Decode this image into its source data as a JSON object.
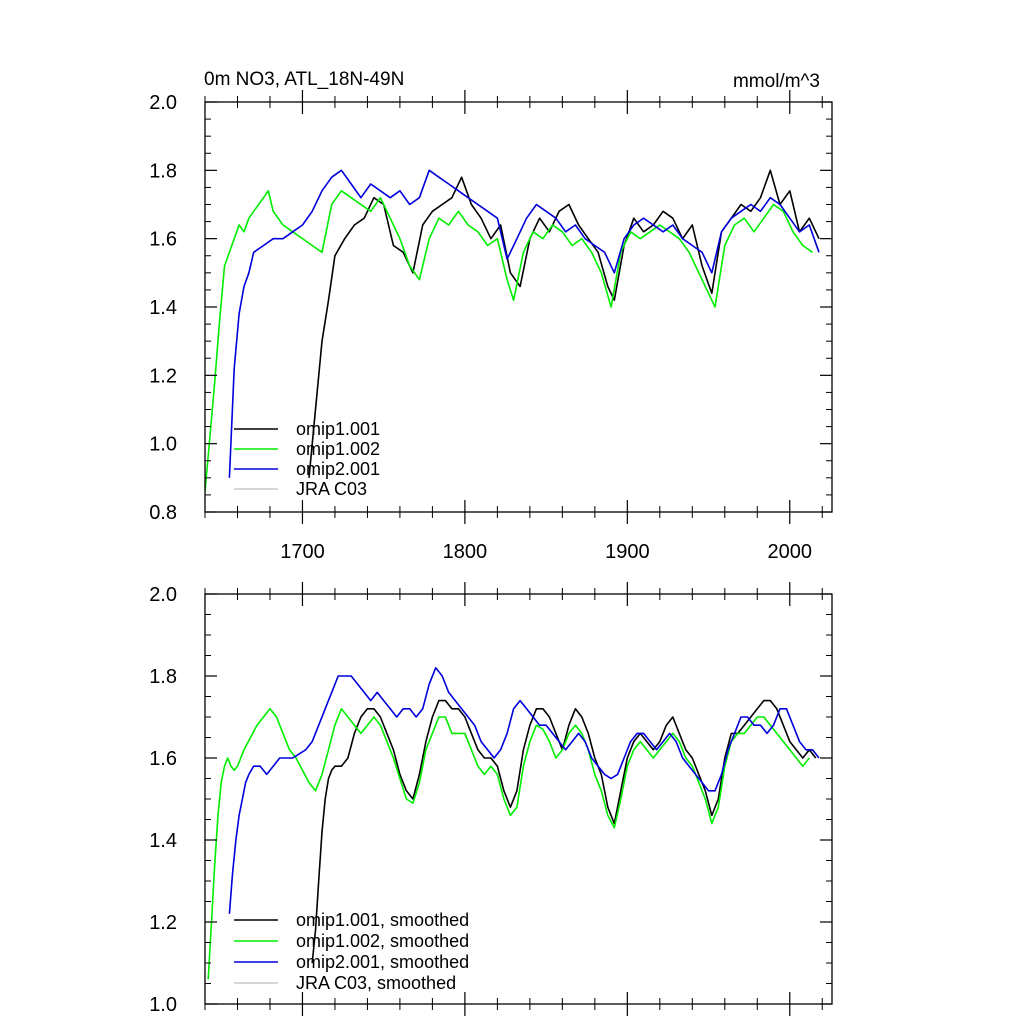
{
  "chart_data": [
    {
      "type": "line",
      "title": "0m NO3, ATL_18N-49N",
      "units": "mmol/m^3",
      "xlim": [
        1640,
        2026
      ],
      "ylim": [
        0.8,
        2.0
      ],
      "xticks": [
        1700,
        1800,
        1900,
        2000
      ],
      "xtick_labels": [
        "1700",
        "1800",
        "1900",
        "2000"
      ],
      "yticks": [
        0.8,
        1.0,
        1.2,
        1.4,
        1.6,
        1.8,
        2.0
      ],
      "ytick_labels": [
        "0.8",
        "1.0",
        "1.2",
        "1.4",
        "1.6",
        "1.8",
        "2.0"
      ],
      "legend_location": "lower-left",
      "series": [
        {
          "name": "omip1.001",
          "color": "#000000",
          "x": [
            1704,
            1708,
            1712,
            1716,
            1720,
            1726,
            1732,
            1738,
            1744,
            1750,
            1756,
            1762,
            1768,
            1774,
            1780,
            1786,
            1792,
            1798,
            1804,
            1810,
            1816,
            1822,
            1828,
            1834,
            1840,
            1846,
            1852,
            1858,
            1864,
            1870,
            1876,
            1882,
            1888,
            1892,
            1898,
            1904,
            1910,
            1916,
            1922,
            1928,
            1934,
            1940,
            1946,
            1952,
            1958,
            1964,
            1970,
            1976,
            1982,
            1988,
            1994,
            2000,
            2006,
            2012,
            2018
          ],
          "y": [
            0.9,
            1.1,
            1.3,
            1.42,
            1.55,
            1.6,
            1.64,
            1.66,
            1.72,
            1.7,
            1.58,
            1.56,
            1.5,
            1.64,
            1.68,
            1.7,
            1.72,
            1.78,
            1.7,
            1.66,
            1.6,
            1.64,
            1.5,
            1.46,
            1.6,
            1.66,
            1.62,
            1.68,
            1.7,
            1.64,
            1.6,
            1.56,
            1.46,
            1.42,
            1.58,
            1.66,
            1.62,
            1.64,
            1.68,
            1.66,
            1.6,
            1.64,
            1.52,
            1.44,
            1.62,
            1.66,
            1.7,
            1.68,
            1.72,
            1.8,
            1.7,
            1.74,
            1.62,
            1.66,
            1.6
          ]
        },
        {
          "name": "omip1.002",
          "color": "#00ee00",
          "x": [
            1640,
            1643,
            1646,
            1649,
            1652,
            1655,
            1658,
            1661,
            1664,
            1667,
            1670,
            1673,
            1676,
            1679,
            1682,
            1688,
            1694,
            1700,
            1706,
            1712,
            1718,
            1724,
            1730,
            1736,
            1742,
            1748,
            1754,
            1760,
            1766,
            1772,
            1778,
            1784,
            1790,
            1796,
            1802,
            1808,
            1814,
            1820,
            1826,
            1830,
            1836,
            1842,
            1848,
            1854,
            1860,
            1866,
            1872,
            1878,
            1884,
            1890,
            1896,
            1902,
            1908,
            1914,
            1920,
            1926,
            1932,
            1938,
            1944,
            1950,
            1954,
            1960,
            1966,
            1972,
            1978,
            1984,
            1990,
            1996,
            2002,
            2008,
            2014
          ],
          "y": [
            0.86,
            1.02,
            1.18,
            1.36,
            1.52,
            1.56,
            1.6,
            1.64,
            1.62,
            1.66,
            1.68,
            1.7,
            1.72,
            1.74,
            1.68,
            1.64,
            1.62,
            1.6,
            1.58,
            1.56,
            1.7,
            1.74,
            1.72,
            1.7,
            1.68,
            1.72,
            1.66,
            1.6,
            1.52,
            1.48,
            1.6,
            1.66,
            1.64,
            1.68,
            1.64,
            1.62,
            1.58,
            1.6,
            1.48,
            1.42,
            1.56,
            1.62,
            1.6,
            1.64,
            1.62,
            1.58,
            1.6,
            1.56,
            1.5,
            1.4,
            1.56,
            1.62,
            1.6,
            1.62,
            1.64,
            1.62,
            1.6,
            1.56,
            1.5,
            1.44,
            1.4,
            1.58,
            1.64,
            1.66,
            1.62,
            1.66,
            1.7,
            1.68,
            1.62,
            1.58,
            1.56
          ]
        },
        {
          "name": "omip2.001",
          "color": "#0000dd",
          "x": [
            1655,
            1658,
            1661,
            1664,
            1667,
            1670,
            1676,
            1682,
            1688,
            1694,
            1700,
            1706,
            1712,
            1718,
            1724,
            1730,
            1736,
            1742,
            1748,
            1754,
            1760,
            1766,
            1772,
            1778,
            1784,
            1790,
            1796,
            1802,
            1808,
            1814,
            1820,
            1826,
            1832,
            1838,
            1844,
            1850,
            1856,
            1862,
            1868,
            1874,
            1880,
            1886,
            1892,
            1898,
            1904,
            1910,
            1916,
            1922,
            1928,
            1934,
            1940,
            1946,
            1952,
            1958,
            1964,
            1970,
            1976,
            1982,
            1988,
            1994,
            2000,
            2006,
            2012,
            2018
          ],
          "y": [
            0.9,
            1.22,
            1.38,
            1.46,
            1.5,
            1.56,
            1.58,
            1.6,
            1.6,
            1.62,
            1.64,
            1.68,
            1.74,
            1.78,
            1.8,
            1.76,
            1.72,
            1.76,
            1.74,
            1.72,
            1.74,
            1.7,
            1.72,
            1.8,
            1.78,
            1.76,
            1.74,
            1.72,
            1.7,
            1.68,
            1.66,
            1.54,
            1.6,
            1.66,
            1.7,
            1.68,
            1.66,
            1.62,
            1.64,
            1.6,
            1.58,
            1.56,
            1.5,
            1.6,
            1.64,
            1.66,
            1.64,
            1.62,
            1.64,
            1.6,
            1.58,
            1.56,
            1.5,
            1.62,
            1.66,
            1.68,
            1.7,
            1.68,
            1.72,
            1.7,
            1.66,
            1.62,
            1.64,
            1.56
          ]
        },
        {
          "name": "JRA C03",
          "color": "#c8c8c8",
          "x": [],
          "y": []
        }
      ]
    },
    {
      "type": "line",
      "title": "",
      "units": "",
      "xlim": [
        1640,
        2026
      ],
      "ylim": [
        1.0,
        2.0
      ],
      "xticks": [
        1700,
        1800,
        1900,
        2000
      ],
      "xtick_labels": [
        "",
        "",
        "",
        ""
      ],
      "yticks": [
        1.0,
        1.2,
        1.4,
        1.6,
        1.8,
        2.0
      ],
      "ytick_labels": [
        "1.0",
        "1.2",
        "1.4",
        "1.6",
        "1.8",
        "2.0"
      ],
      "legend_location": "lower-left",
      "series": [
        {
          "name": "omip1.001, smoothed",
          "color": "#000000",
          "x": [
            1706,
            1708,
            1710,
            1712,
            1714,
            1716,
            1718,
            1720,
            1724,
            1728,
            1732,
            1736,
            1740,
            1744,
            1748,
            1752,
            1756,
            1760,
            1764,
            1768,
            1772,
            1776,
            1780,
            1784,
            1788,
            1792,
            1796,
            1800,
            1804,
            1808,
            1812,
            1816,
            1820,
            1824,
            1828,
            1832,
            1836,
            1840,
            1844,
            1848,
            1852,
            1856,
            1860,
            1864,
            1868,
            1872,
            1876,
            1880,
            1884,
            1888,
            1892,
            1896,
            1900,
            1904,
            1908,
            1912,
            1916,
            1920,
            1924,
            1928,
            1932,
            1936,
            1940,
            1944,
            1948,
            1952,
            1956,
            1960,
            1964,
            1968,
            1972,
            1976,
            1980,
            1984,
            1988,
            1992,
            1996,
            2000,
            2004,
            2008,
            2012,
            2016
          ],
          "y": [
            1.1,
            1.18,
            1.3,
            1.42,
            1.5,
            1.55,
            1.57,
            1.58,
            1.58,
            1.6,
            1.66,
            1.7,
            1.72,
            1.72,
            1.7,
            1.66,
            1.62,
            1.56,
            1.52,
            1.5,
            1.56,
            1.64,
            1.7,
            1.74,
            1.74,
            1.72,
            1.72,
            1.7,
            1.66,
            1.62,
            1.6,
            1.6,
            1.58,
            1.52,
            1.48,
            1.52,
            1.62,
            1.68,
            1.72,
            1.72,
            1.7,
            1.66,
            1.62,
            1.68,
            1.72,
            1.7,
            1.66,
            1.6,
            1.56,
            1.48,
            1.44,
            1.52,
            1.6,
            1.64,
            1.66,
            1.64,
            1.62,
            1.64,
            1.68,
            1.7,
            1.66,
            1.62,
            1.6,
            1.56,
            1.52,
            1.46,
            1.5,
            1.6,
            1.66,
            1.66,
            1.68,
            1.7,
            1.72,
            1.74,
            1.74,
            1.72,
            1.68,
            1.64,
            1.62,
            1.6,
            1.62,
            1.6
          ]
        },
        {
          "name": "omip1.002, smoothed",
          "color": "#00ee00",
          "x": [
            1642,
            1644,
            1646,
            1648,
            1650,
            1652,
            1654,
            1656,
            1658,
            1660,
            1664,
            1668,
            1672,
            1676,
            1680,
            1684,
            1688,
            1692,
            1696,
            1700,
            1704,
            1708,
            1712,
            1716,
            1720,
            1724,
            1728,
            1732,
            1736,
            1740,
            1744,
            1748,
            1752,
            1756,
            1760,
            1764,
            1768,
            1772,
            1776,
            1780,
            1784,
            1788,
            1792,
            1796,
            1800,
            1804,
            1808,
            1812,
            1816,
            1820,
            1824,
            1828,
            1832,
            1836,
            1840,
            1844,
            1848,
            1852,
            1856,
            1860,
            1864,
            1868,
            1872,
            1876,
            1880,
            1884,
            1888,
            1892,
            1896,
            1900,
            1904,
            1908,
            1912,
            1916,
            1920,
            1924,
            1928,
            1932,
            1936,
            1940,
            1944,
            1948,
            1952,
            1956,
            1960,
            1964,
            1968,
            1972,
            1976,
            1980,
            1984,
            1988,
            1992,
            1996,
            2000,
            2004,
            2008,
            2012
          ],
          "y": [
            1.06,
            1.2,
            1.34,
            1.46,
            1.54,
            1.58,
            1.6,
            1.58,
            1.57,
            1.58,
            1.62,
            1.65,
            1.68,
            1.7,
            1.72,
            1.7,
            1.66,
            1.62,
            1.6,
            1.57,
            1.54,
            1.52,
            1.56,
            1.62,
            1.68,
            1.72,
            1.7,
            1.68,
            1.66,
            1.68,
            1.7,
            1.68,
            1.64,
            1.6,
            1.55,
            1.5,
            1.49,
            1.54,
            1.62,
            1.66,
            1.7,
            1.7,
            1.66,
            1.66,
            1.66,
            1.62,
            1.58,
            1.56,
            1.58,
            1.56,
            1.5,
            1.46,
            1.48,
            1.58,
            1.64,
            1.68,
            1.67,
            1.64,
            1.6,
            1.62,
            1.66,
            1.68,
            1.66,
            1.62,
            1.56,
            1.52,
            1.46,
            1.43,
            1.5,
            1.58,
            1.62,
            1.64,
            1.62,
            1.6,
            1.62,
            1.64,
            1.66,
            1.64,
            1.6,
            1.58,
            1.54,
            1.5,
            1.44,
            1.48,
            1.58,
            1.64,
            1.66,
            1.66,
            1.68,
            1.7,
            1.7,
            1.68,
            1.66,
            1.64,
            1.62,
            1.6,
            1.58,
            1.6
          ]
        },
        {
          "name": "omip2.001, smoothed",
          "color": "#0000dd",
          "x": [
            1655,
            1657,
            1659,
            1661,
            1663,
            1665,
            1667,
            1670,
            1674,
            1678,
            1682,
            1686,
            1690,
            1694,
            1698,
            1702,
            1706,
            1710,
            1714,
            1718,
            1722,
            1726,
            1730,
            1734,
            1738,
            1742,
            1746,
            1750,
            1754,
            1758,
            1762,
            1766,
            1770,
            1774,
            1778,
            1782,
            1786,
            1790,
            1794,
            1798,
            1802,
            1806,
            1810,
            1814,
            1818,
            1822,
            1826,
            1830,
            1834,
            1838,
            1842,
            1846,
            1850,
            1854,
            1858,
            1862,
            1866,
            1870,
            1874,
            1878,
            1882,
            1886,
            1890,
            1894,
            1898,
            1902,
            1906,
            1910,
            1914,
            1918,
            1922,
            1926,
            1930,
            1934,
            1938,
            1942,
            1946,
            1950,
            1954,
            1958,
            1962,
            1966,
            1970,
            1974,
            1978,
            1982,
            1986,
            1990,
            1994,
            1998,
            2002,
            2006,
            2010,
            2014,
            2018
          ],
          "y": [
            1.22,
            1.32,
            1.4,
            1.46,
            1.5,
            1.54,
            1.56,
            1.58,
            1.58,
            1.56,
            1.58,
            1.6,
            1.6,
            1.6,
            1.61,
            1.62,
            1.64,
            1.68,
            1.72,
            1.76,
            1.8,
            1.8,
            1.8,
            1.78,
            1.76,
            1.74,
            1.76,
            1.74,
            1.72,
            1.7,
            1.72,
            1.72,
            1.7,
            1.72,
            1.78,
            1.82,
            1.8,
            1.76,
            1.74,
            1.72,
            1.7,
            1.68,
            1.64,
            1.62,
            1.6,
            1.62,
            1.66,
            1.72,
            1.74,
            1.72,
            1.7,
            1.68,
            1.68,
            1.66,
            1.64,
            1.62,
            1.64,
            1.66,
            1.64,
            1.6,
            1.58,
            1.56,
            1.55,
            1.56,
            1.6,
            1.64,
            1.66,
            1.66,
            1.64,
            1.62,
            1.64,
            1.66,
            1.64,
            1.6,
            1.58,
            1.56,
            1.54,
            1.52,
            1.52,
            1.56,
            1.62,
            1.66,
            1.7,
            1.7,
            1.68,
            1.68,
            1.66,
            1.68,
            1.72,
            1.72,
            1.68,
            1.64,
            1.62,
            1.62,
            1.6
          ]
        },
        {
          "name": "JRA C03, smoothed",
          "color": "#c8c8c8",
          "x": [],
          "y": []
        }
      ]
    }
  ]
}
